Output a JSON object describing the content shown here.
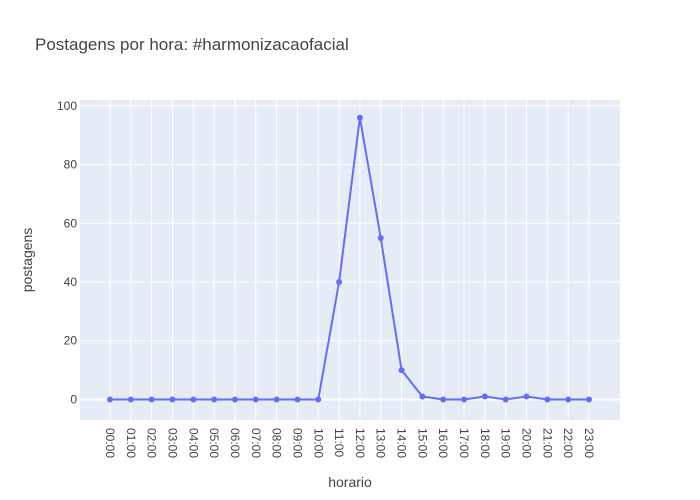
{
  "chart_data": {
    "type": "line",
    "title": "Postagens por hora: #harmonizacaofacial",
    "xlabel": "horario",
    "ylabel": "postagens",
    "categories": [
      "00:00",
      "01:00",
      "02:00",
      "03:00",
      "04:00",
      "05:00",
      "06:00",
      "07:00",
      "08:00",
      "09:00",
      "10:00",
      "11:00",
      "12:00",
      "13:00",
      "14:00",
      "15:00",
      "16:00",
      "17:00",
      "18:00",
      "19:00",
      "20:00",
      "21:00",
      "22:00",
      "23:00"
    ],
    "values": [
      0,
      0,
      0,
      0,
      0,
      0,
      0,
      0,
      0,
      0,
      0,
      40,
      96,
      55,
      10,
      1,
      0,
      0,
      1,
      0,
      1,
      0,
      0,
      0
    ],
    "ylim": [
      -7,
      102
    ],
    "yticks": [
      0,
      20,
      40,
      60,
      80,
      100
    ],
    "grid": true,
    "line_color": "#636efa",
    "plot_bg": "#e5ecf6"
  }
}
